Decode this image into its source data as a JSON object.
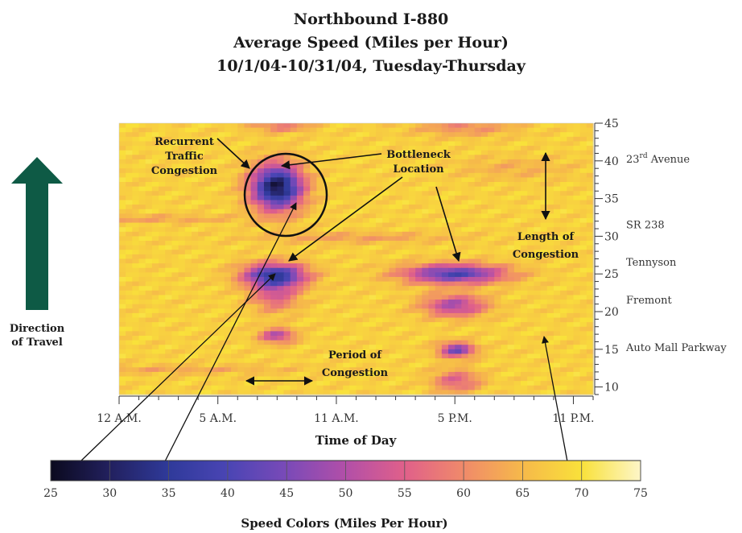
{
  "chart_data": {
    "type": "heatmap",
    "title": "Northbound I-880",
    "subtitle_lines": [
      "Average Speed (Miles per Hour)",
      "10/1/04-10/31/04, Tuesday-Thursday"
    ],
    "xlabel": "Time of Day",
    "x_ticks": [
      {
        "hour": 0,
        "label": "12 A.M."
      },
      {
        "hour": 5,
        "label": "5 A.M."
      },
      {
        "hour": 11,
        "label": "11 A.M."
      },
      {
        "hour": 17,
        "label": "5 P.M."
      },
      {
        "hour": 23,
        "label": "11 P.M."
      }
    ],
    "xlim": [
      0,
      24
    ],
    "ylim": [
      9,
      45
    ],
    "y_ticks": [
      10,
      15,
      20,
      25,
      30,
      35,
      40,
      45
    ],
    "locations": [
      {
        "postmile": 40.2,
        "label": "23rd Avenue",
        "main": "23",
        "sup": "rd",
        "rest": " Avenue"
      },
      {
        "postmile": 31.5,
        "label": "SR 238"
      },
      {
        "postmile": 26.5,
        "label": "Tennyson"
      },
      {
        "postmile": 21.5,
        "label": "Fremont"
      },
      {
        "postmile": 15.2,
        "label": "Auto Mall Parkway"
      }
    ],
    "colorbar": {
      "label": "Speed Colors (Miles Per Hour)",
      "min": 25,
      "max": 75,
      "ticks": [
        25,
        30,
        35,
        40,
        45,
        50,
        55,
        60,
        65,
        70,
        75
      ],
      "stops": [
        {
          "speed": 25,
          "color": "#0b0a1e"
        },
        {
          "speed": 30,
          "color": "#22205e"
        },
        {
          "speed": 35,
          "color": "#2f3a9a"
        },
        {
          "speed": 40,
          "color": "#4a45b4"
        },
        {
          "speed": 45,
          "color": "#7a4ab8"
        },
        {
          "speed": 50,
          "color": "#b24fa8"
        },
        {
          "speed": 55,
          "color": "#e0608a"
        },
        {
          "speed": 60,
          "color": "#f08a6a"
        },
        {
          "speed": 65,
          "color": "#f6b94a"
        },
        {
          "speed": 70,
          "color": "#f9e13a"
        },
        {
          "speed": 75,
          "color": "#fdf6c8"
        }
      ]
    },
    "baseline_speed": 68,
    "congestion_zones": [
      {
        "hour_center": 8.0,
        "hour_width": 1.3,
        "postmile_center": 36.5,
        "postmile_width": 3.0,
        "min_speed": 28
      },
      {
        "hour_center": 7.9,
        "hour_width": 1.6,
        "postmile_center": 24.8,
        "postmile_width": 1.6,
        "min_speed": 36
      },
      {
        "hour_center": 7.9,
        "hour_width": 1.2,
        "postmile_center": 22.0,
        "postmile_width": 2.0,
        "min_speed": 55
      },
      {
        "hour_center": 8.0,
        "hour_width": 0.9,
        "postmile_center": 16.8,
        "postmile_width": 1.0,
        "min_speed": 50
      },
      {
        "hour_center": 17.0,
        "hour_width": 2.6,
        "postmile_center": 25.0,
        "postmile_width": 1.3,
        "min_speed": 40
      },
      {
        "hour_center": 17.0,
        "hour_width": 1.6,
        "postmile_center": 20.8,
        "postmile_width": 1.5,
        "min_speed": 49
      },
      {
        "hour_center": 17.1,
        "hour_width": 0.9,
        "postmile_center": 14.9,
        "postmile_width": 1.0,
        "min_speed": 44
      },
      {
        "hour_center": 17.1,
        "hour_width": 1.2,
        "postmile_center": 10.8,
        "postmile_width": 1.5,
        "min_speed": 55
      },
      {
        "hour_center": 17.5,
        "hour_width": 2.5,
        "postmile_center": 44.5,
        "postmile_width": 1.2,
        "min_speed": 60
      },
      {
        "hour_center": 8.2,
        "hour_width": 1.5,
        "postmile_center": 44.6,
        "postmile_width": 0.8,
        "min_speed": 58
      },
      {
        "hour_center": 1.5,
        "hour_width": 5.0,
        "postmile_center": 32.3,
        "postmile_width": 0.5,
        "min_speed": 62
      },
      {
        "hour_center": 12.0,
        "hour_width": 5.0,
        "postmile_center": 29.8,
        "postmile_width": 0.7,
        "min_speed": 62
      },
      {
        "hour_center": 3.0,
        "hour_width": 6.0,
        "postmile_center": 12.3,
        "postmile_width": 0.6,
        "min_speed": 63
      },
      {
        "hour_center": 20.0,
        "hour_width": 3.0,
        "postmile_center": 39.0,
        "postmile_width": 1.5,
        "min_speed": 64
      }
    ],
    "annotations": {
      "recurrent": [
        "Recurrent",
        "Traffic",
        "Congestion"
      ],
      "bottleneck": [
        "Bottleneck",
        "Location"
      ],
      "length": [
        "Length of",
        "Congestion"
      ],
      "period": [
        "Period of",
        "Congestion"
      ],
      "direction": [
        "Direction",
        "of Travel"
      ]
    }
  }
}
